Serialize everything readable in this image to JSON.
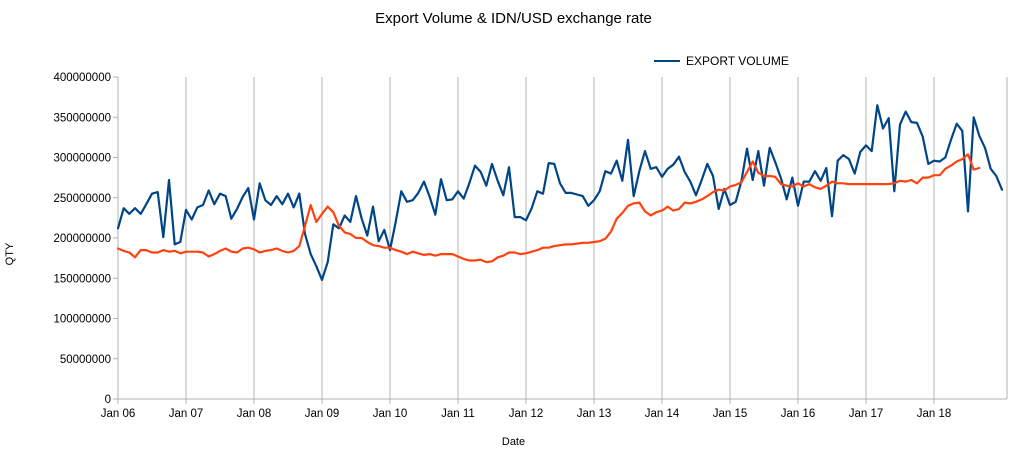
{
  "chart_data": {
    "type": "line",
    "title": "Export Volume & IDN/USD exchange rate",
    "xlabel": "Date",
    "ylabel": "QTY",
    "ylim": [
      0,
      400000000
    ],
    "yticks": [
      "0",
      "50000000",
      "100000000",
      "150000000",
      "200000000",
      "250000000",
      "300000000",
      "350000000",
      "400000000"
    ],
    "xticks": [
      "Jan 06",
      "Jan 07",
      "Jan 08",
      "Jan 09",
      "Jan 10",
      "Jan 11",
      "Jan 12",
      "Jan 13",
      "Jan 14",
      "Jan 15",
      "Jan 16",
      "Jan 17",
      "Jan 18"
    ],
    "x_start": "Jan 06",
    "x_interval": "month",
    "grid": "vertical",
    "legend_position": "top-right",
    "legend": [
      "EXPORT VOLUME"
    ],
    "colors": {
      "export": "#004586",
      "exchange": "#ff420e",
      "grid": "#b3b3b3"
    },
    "series": [
      {
        "name": "EXPORT VOLUME",
        "color": "#004586",
        "values": [
          212000000,
          237000000,
          230000000,
          237000000,
          230000000,
          242000000,
          255000000,
          257000000,
          201000000,
          272000000,
          192000000,
          195000000,
          235000000,
          223000000,
          238000000,
          241000000,
          259000000,
          242000000,
          255000000,
          252000000,
          224000000,
          236000000,
          251000000,
          262000000,
          223000000,
          268000000,
          247000000,
          241000000,
          252000000,
          242000000,
          255000000,
          238000000,
          255000000,
          205000000,
          180000000,
          165000000,
          148000000,
          170000000,
          217000000,
          212000000,
          228000000,
          220000000,
          252000000,
          224000000,
          203000000,
          239000000,
          196000000,
          210000000,
          185000000,
          220000000,
          258000000,
          245000000,
          247000000,
          256000000,
          270000000,
          251000000,
          229000000,
          273000000,
          247000000,
          248000000,
          258000000,
          249000000,
          268000000,
          290000000,
          282000000,
          265000000,
          292000000,
          271000000,
          253000000,
          288000000,
          226000000,
          226000000,
          222000000,
          237000000,
          258000000,
          255000000,
          293000000,
          292000000,
          268000000,
          256000000,
          256000000,
          254000000,
          252000000,
          240000000,
          247000000,
          258000000,
          283000000,
          280000000,
          296000000,
          271000000,
          322000000,
          252000000,
          283000000,
          308000000,
          286000000,
          288000000,
          276000000,
          286000000,
          291000000,
          301000000,
          282000000,
          270000000,
          253000000,
          272000000,
          292000000,
          277000000,
          236000000,
          261000000,
          241000000,
          245000000,
          270000000,
          311000000,
          272000000,
          308000000,
          265000000,
          312000000,
          294000000,
          274000000,
          248000000,
          275000000,
          240000000,
          270000000,
          270000000,
          283000000,
          271000000,
          287000000,
          227000000,
          296000000,
          303000000,
          298000000,
          280000000,
          307000000,
          315000000,
          308000000,
          365000000,
          336000000,
          349000000,
          258000000,
          341000000,
          357000000,
          344000000,
          343000000,
          326000000,
          292000000,
          296000000,
          295000000,
          300000000,
          322000000,
          342000000,
          333000000,
          233000000,
          350000000,
          327000000,
          312000000,
          286000000,
          277000000,
          260000000
        ]
      },
      {
        "color": "#ff420e",
        "values": [
          187000000,
          184000000,
          182000000,
          176000000,
          185000000,
          185000000,
          182000000,
          182000000,
          185000000,
          183000000,
          184000000,
          181000000,
          183000000,
          183000000,
          183000000,
          182000000,
          177000000,
          180000000,
          184000000,
          187000000,
          183000000,
          182000000,
          187000000,
          188000000,
          186000000,
          182000000,
          184000000,
          185000000,
          187000000,
          184000000,
          182000000,
          184000000,
          190000000,
          215000000,
          241000000,
          220000000,
          230000000,
          239000000,
          232000000,
          215000000,
          207000000,
          205000000,
          200000000,
          200000000,
          195000000,
          191000000,
          190000000,
          188000000,
          188000000,
          185000000,
          183000000,
          180000000,
          183000000,
          181000000,
          179000000,
          180000000,
          178000000,
          180000000,
          180000000,
          180000000,
          177000000,
          174000000,
          172000000,
          172000000,
          173000000,
          170000000,
          171000000,
          176000000,
          178000000,
          182000000,
          182000000,
          180000000,
          181000000,
          183000000,
          185000000,
          188000000,
          188000000,
          190000000,
          191000000,
          192000000,
          192000000,
          193000000,
          194000000,
          194000000,
          195000000,
          196000000,
          199000000,
          208000000,
          224000000,
          231000000,
          240000000,
          243000000,
          244000000,
          233000000,
          228000000,
          232000000,
          234000000,
          239000000,
          234000000,
          236000000,
          244000000,
          243000000,
          245000000,
          248000000,
          252000000,
          257000000,
          260000000,
          259000000,
          264000000,
          266000000,
          269000000,
          282000000,
          295000000,
          281000000,
          277000000,
          277000000,
          276000000,
          267000000,
          265000000,
          264000000,
          268000000,
          264000000,
          267000000,
          263000000,
          261000000,
          265000000,
          270000000,
          268000000,
          268000000,
          267000000,
          267000000,
          267000000,
          267000000,
          267000000,
          267000000,
          267000000,
          267000000,
          268000000,
          271000000,
          270000000,
          272000000,
          268000000,
          275000000,
          275000000,
          278000000,
          278000000,
          286000000,
          290000000,
          295000000,
          298000000,
          304000000,
          285000000,
          287000000
        ]
      }
    ]
  }
}
